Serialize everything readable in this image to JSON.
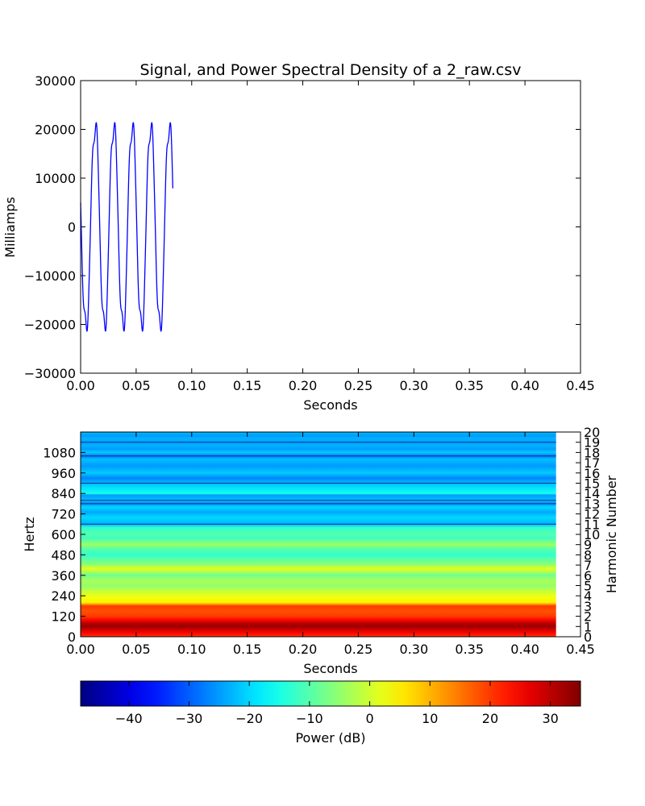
{
  "chart_data": [
    {
      "type": "line",
      "title": "Signal, and Power Spectral Density of a 2_raw.csv",
      "xlabel": "Seconds",
      "ylabel": "Milliamps",
      "xlim": [
        0,
        0.45
      ],
      "ylim": [
        -30000,
        30000
      ],
      "xticks": [
        0,
        0.05,
        0.1,
        0.15,
        0.2,
        0.25,
        0.3,
        0.35,
        0.4,
        0.45
      ],
      "xtick_labels": [
        "0.00",
        "0.05",
        "0.10",
        "0.15",
        "0.20",
        "0.25",
        "0.30",
        "0.35",
        "0.40",
        "0.45"
      ],
      "yticks": [
        -30000,
        -20000,
        -10000,
        0,
        10000,
        20000,
        30000
      ],
      "ytick_labels": [
        "−30000",
        "−20000",
        "−10000",
        "0",
        "10000",
        "20000",
        "30000"
      ],
      "grid": false,
      "series": [
        {
          "color": "#0000ff",
          "waveform": {
            "fundamental_hz": 60,
            "amplitude": 21500,
            "t_start": 0,
            "t_end": 0.083,
            "start_value": 5000,
            "end_value": 4000,
            "peak": 21200,
            "trough": -22300
          }
        }
      ]
    },
    {
      "type": "heatmap",
      "xlabel": "Seconds",
      "ylabel": "Hertz",
      "right_ylabel": "Harmonic Number",
      "xlim": [
        0,
        0.45
      ],
      "ylim": [
        0,
        1200
      ],
      "data_x_extent": [
        0,
        0.428
      ],
      "xticks": [
        0,
        0.05,
        0.1,
        0.15,
        0.2,
        0.25,
        0.3,
        0.35,
        0.4,
        0.45
      ],
      "xtick_labels": [
        "0.00",
        "0.05",
        "0.10",
        "0.15",
        "0.20",
        "0.25",
        "0.30",
        "0.35",
        "0.40",
        "0.45"
      ],
      "yticks": [
        0,
        120,
        240,
        360,
        480,
        600,
        720,
        840,
        960,
        1080
      ],
      "ytick_labels": [
        "0",
        "120",
        "240",
        "360",
        "480",
        "600",
        "720",
        "840",
        "960",
        "1080"
      ],
      "right_yticks": [
        0,
        1,
        2,
        3,
        4,
        5,
        6,
        7,
        8,
        9,
        10,
        11,
        12,
        13,
        14,
        15,
        16,
        17,
        18,
        19,
        20
      ],
      "right_ytick_labels": [
        "0",
        "1",
        "2",
        "3",
        "4",
        "5",
        "6",
        "7",
        "8",
        "9",
        "10",
        "11",
        "12",
        "13",
        "14",
        "15",
        "16",
        "17",
        "18",
        "19",
        "20"
      ],
      "right_ylim": [
        0,
        20
      ],
      "power_by_frequency_db": [
        [
          0,
          20
        ],
        [
          20,
          24
        ],
        [
          40,
          28
        ],
        [
          60,
          33
        ],
        [
          80,
          30
        ],
        [
          100,
          24
        ],
        [
          120,
          20
        ],
        [
          150,
          18
        ],
        [
          180,
          20
        ],
        [
          200,
          5
        ],
        [
          230,
          3
        ],
        [
          260,
          0
        ],
        [
          300,
          -5
        ],
        [
          330,
          -3
        ],
        [
          360,
          -8
        ],
        [
          400,
          2
        ],
        [
          420,
          -5
        ],
        [
          460,
          -10
        ],
        [
          480,
          -13
        ],
        [
          520,
          -9
        ],
        [
          540,
          -4
        ],
        [
          580,
          -12
        ],
        [
          600,
          -10
        ],
        [
          640,
          -13
        ],
        [
          660,
          -23
        ],
        [
          700,
          -20
        ],
        [
          730,
          -24
        ],
        [
          760,
          -20
        ],
        [
          780,
          -26
        ],
        [
          800,
          -22
        ],
        [
          830,
          -25
        ],
        [
          840,
          -15
        ],
        [
          870,
          -19
        ],
        [
          900,
          -22
        ],
        [
          930,
          -27
        ],
        [
          960,
          -21
        ],
        [
          1000,
          -25
        ],
        [
          1040,
          -22
        ],
        [
          1060,
          -28
        ],
        [
          1080,
          -21
        ],
        [
          1100,
          -25
        ],
        [
          1120,
          -23
        ],
        [
          1140,
          -25
        ],
        [
          1160,
          -23
        ],
        [
          1180,
          -25
        ],
        [
          1200,
          -22
        ]
      ],
      "band_lines_hz": [
        660,
        780,
        800,
        900,
        1060,
        1140
      ]
    }
  ],
  "colorbar": {
    "label": "Power (dB)",
    "colormap": "jet",
    "vmin": -48,
    "vmax": 35,
    "ticks": [
      -40,
      -30,
      -20,
      -10,
      0,
      10,
      20,
      30
    ],
    "tick_labels": [
      "−40",
      "−30",
      "−20",
      "−10",
      "0",
      "10",
      "20",
      "30"
    ]
  }
}
